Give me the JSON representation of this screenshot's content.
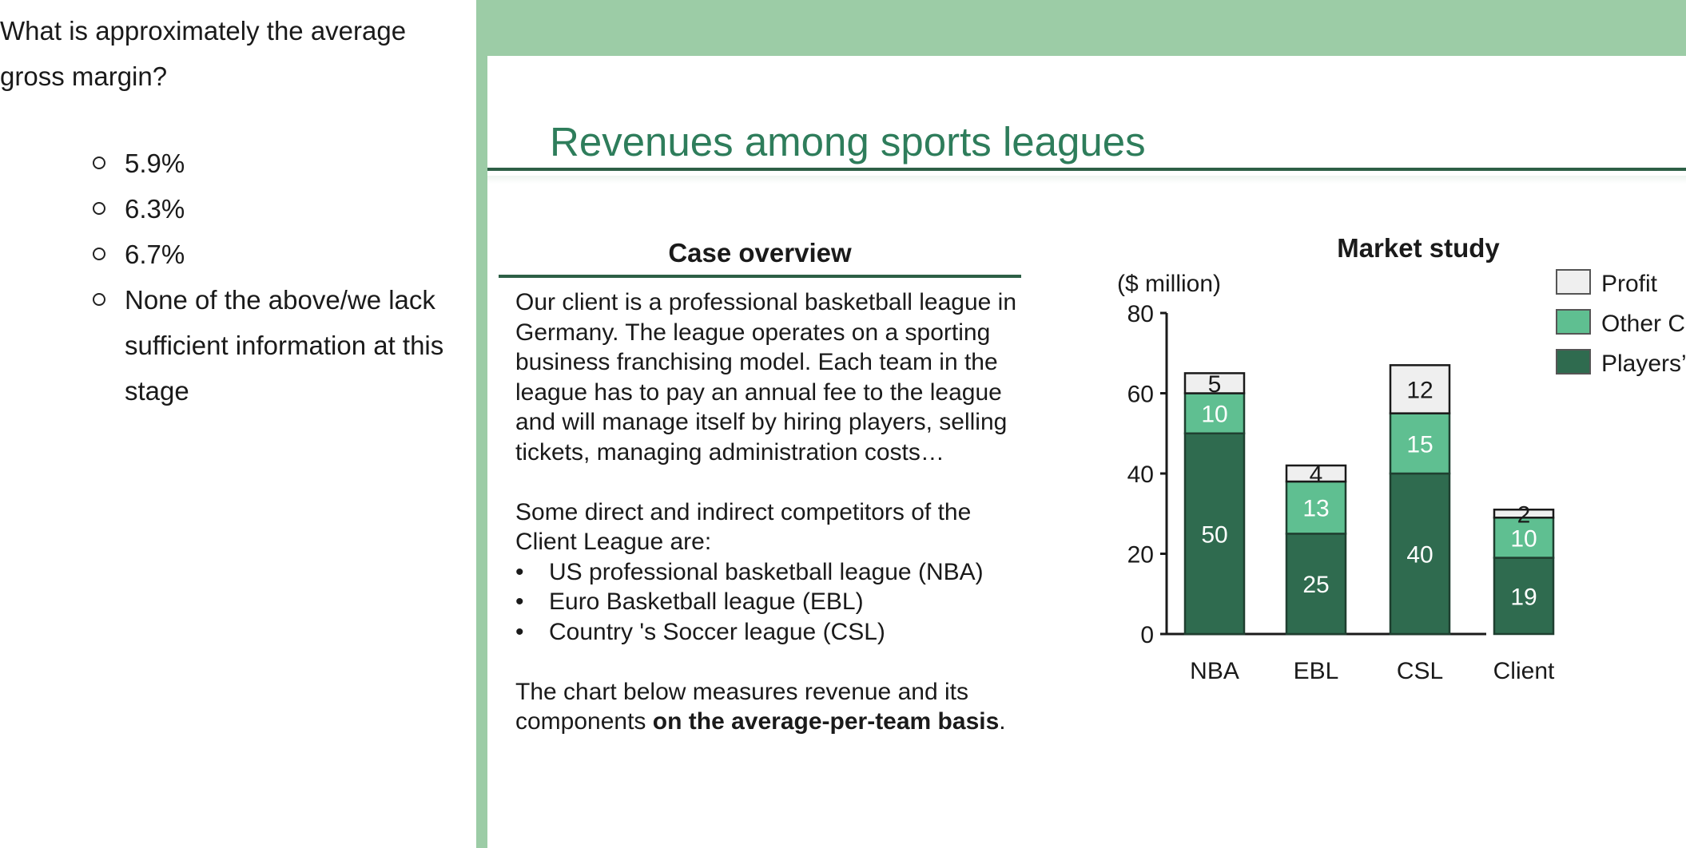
{
  "question": {
    "text": "What is approximately the average gross margin?",
    "options": [
      "5.9%",
      "6.3%",
      "6.7%",
      "None of the above/we lack sufficient information at this stage"
    ]
  },
  "slide": {
    "title": "Revenues among sports leagues",
    "overview": {
      "heading": "Case overview",
      "paragraph1": "Our client is a professional basketball league in Germany. The league operates on a sporting business franchising model. Each team in the league has to pay an annual fee to the league and will manage itself by hiring players, selling tickets, managing administration costs…",
      "paragraph2": "Some direct and indirect competitors of the Client League are:",
      "competitors": [
        "US professional basketball league (NBA)",
        "Euro Basketball league (EBL)",
        "Country 's Soccer league (CSL)"
      ],
      "paragraph3_prefix": "The chart below measures revenue and its components ",
      "paragraph3_bold": "on the average-per-team basis",
      "paragraph3_suffix": "."
    },
    "market_study_heading": "Market study"
  },
  "colors": {
    "accent_frame": "#9ccca6",
    "title_green": "#2e7d5b",
    "rule": "#2d5f46",
    "players_salary": "#2f6b4f",
    "other_cost": "#5fbf91",
    "profit": "#efefef"
  },
  "chart_data": {
    "type": "bar",
    "stacked": true,
    "title": "Market study",
    "unit_label": "($ million)",
    "categories": [
      "NBA",
      "EBL",
      "CSL",
      "Client"
    ],
    "series": [
      {
        "name": "Players’ Salary",
        "values": [
          50,
          25,
          40,
          19
        ]
      },
      {
        "name": "Other Cost",
        "values": [
          10,
          13,
          15,
          10
        ]
      },
      {
        "name": "Profit",
        "values": [
          5,
          4,
          12,
          2
        ]
      }
    ],
    "yticks": [
      "0",
      "20",
      "40",
      "60",
      "80"
    ],
    "ylim": [
      0,
      80
    ],
    "legend_position": "top-right",
    "grid": false
  }
}
